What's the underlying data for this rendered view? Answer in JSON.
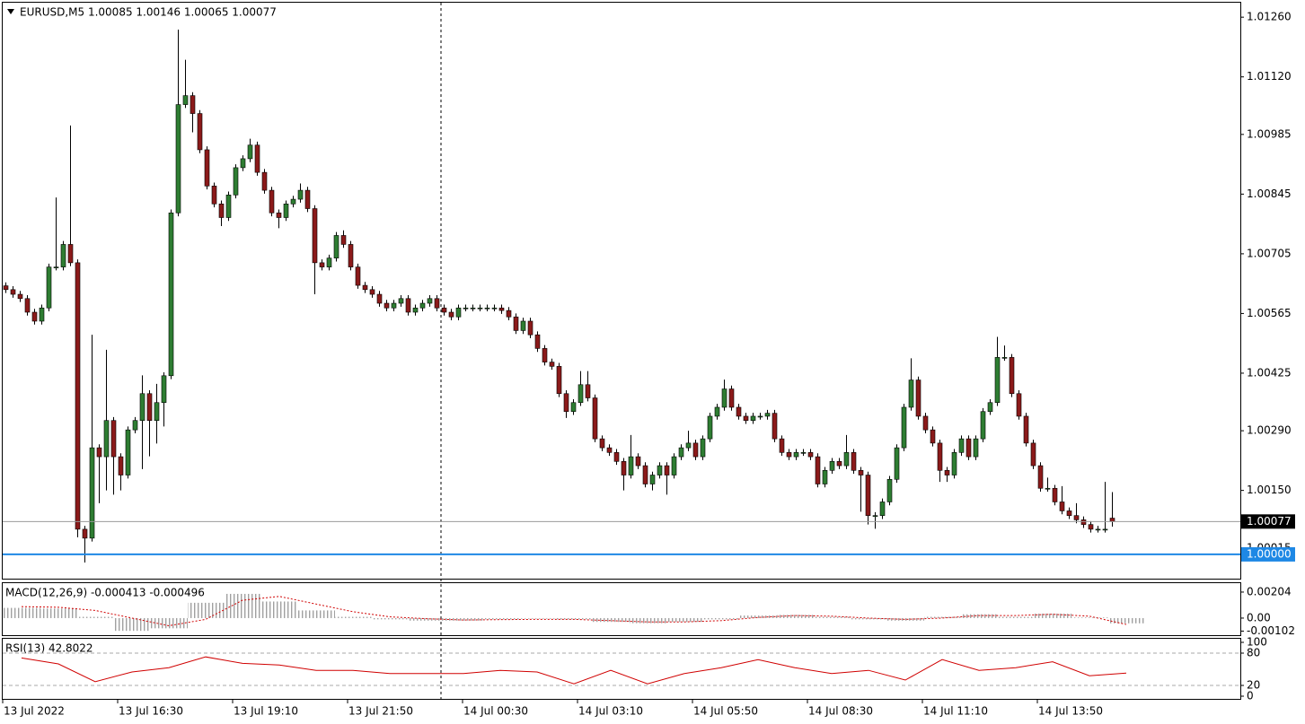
{
  "chart_data": [
    {
      "type": "candlestick",
      "title": "EURUSD,M5  1.00085 1.00146 1.00065 1.00077",
      "bull_color": "#2e7d32",
      "bear_color": "#8b1a1a",
      "wick_color": "#000000",
      "ylim": [
        0.99943,
        1.01294
      ],
      "yticks": [
        {
          "value": 1.0126,
          "label": "1.01260"
        },
        {
          "value": 1.0112,
          "label": "1.01120"
        },
        1.00985,
        1.00845,
        1.00705,
        1.00565,
        1.00425,
        {
          "value": 1.0029,
          "label": "1.00290"
        },
        {
          "value": 1.0015,
          "label": "1.00150"
        },
        1.00015
      ],
      "last_price": 1.00077,
      "level": {
        "value": 1,
        "label": "1.00000"
      },
      "level_color": "#1e88e5",
      "x_labels": [
        "13 Jul 2022",
        "13 Jul 16:30",
        "13 Jul 19:10",
        "13 Jul 21:50",
        "14 Jul 00:30",
        "14 Jul 03:10",
        "14 Jul 05:50",
        "14 Jul 08:30",
        "14 Jul 11:10",
        "14 Jul 13:50"
      ],
      "open": [
        1.0063,
        1.00621,
        1.0061,
        1.006,
        1.00568,
        1.00547,
        1.00578,
        1.00674,
        1.00674,
        1.00727,
        1.00684,
        1.00059,
        1.00038,
        1.0025,
        1.00229,
        1.00314,
        1.00229,
        1.00186,
        1.00292,
        1.00314,
        1.00377,
        1.00314,
        1.00356,
        1.00419,
        1.00801,
        1.01055,
        1.01076,
        1.01034,
        1.00949,
        1.00864,
        1.00822,
        1.0079,
        1.00843,
        1.00907,
        1.00928,
        1.0096,
        1.00896,
        1.00854,
        1.00801,
        1.0079,
        1.00822,
        1.00833,
        1.00854,
        1.00811,
        1.00684,
        1.00674,
        1.00695,
        1.00748,
        1.00727,
        1.00674,
        1.00631,
        1.00621,
        1.0061,
        1.00589,
        1.00578,
        1.00589,
        1.006,
        1.00568,
        1.00578,
        1.00589,
        1.006,
        1.00578,
        1.00568,
        1.00557,
        1.00578,
        1.00578,
        1.00578,
        1.00578,
        1.00578,
        1.00578,
        1.00572,
        1.00557,
        1.00525,
        1.00547,
        1.00515,
        1.00483,
        1.00451,
        1.00441,
        1.00377,
        1.00335,
        1.00356,
        1.00398,
        1.00367,
        1.00271,
        1.0025,
        1.00239,
        1.00218,
        1.00186,
        1.00229,
        1.00208,
        1.00165,
        1.00186,
        1.00208,
        1.00186,
        1.00229,
        1.0025,
        1.00261,
        1.00229,
        1.00271,
        1.00324,
        1.00345,
        1.00388,
        1.00345,
        1.00324,
        1.00314,
        1.00324,
        1.00324,
        1.00331,
        1.00271,
        1.00239,
        1.00229,
        1.00239,
        1.00239,
        1.00229,
        1.00165,
        1.00197,
        1.00218,
        1.00208,
        1.00239,
        1.00197,
        1.00186,
        1.00091,
        1.00091,
        1.00123,
        1.00176,
        1.0025,
        1.00345,
        1.00409,
        1.00324,
        1.00292,
        1.00261,
        1.00197,
        1.00186,
        1.00239,
        1.00271,
        1.00229,
        1.00271,
        1.00335,
        1.00356,
        1.00462,
        1.00462,
        1.00377,
        1.00324,
        1.00261,
        1.00208,
        1.00155,
        1.00155,
        1.00123,
        1.00102,
        1.00091,
        1.00081,
        1.0007,
        1.00059,
        1.00059,
        1.00085
      ],
      "high": [
        1.00638,
        1.00629,
        1.00618,
        1.00608,
        1.00576,
        1.00586,
        1.00682,
        1.00837,
        1.00735,
        1.01006,
        1.00692,
        1.00067,
        1.00515,
        1.00258,
        1.0048,
        1.00322,
        1.00237,
        1.003,
        1.00322,
        1.0042,
        1.00385,
        1.004,
        1.00427,
        1.00809,
        1.01231,
        1.0116,
        1.01084,
        1.01042,
        1.00957,
        1.00872,
        1.0083,
        1.00851,
        1.00915,
        1.00936,
        1.00975,
        1.00968,
        1.00904,
        1.00862,
        1.00809,
        1.0083,
        1.00841,
        1.0087,
        1.00862,
        1.00819,
        1.00692,
        1.00703,
        1.00756,
        1.0076,
        1.00735,
        1.00682,
        1.00639,
        1.00629,
        1.00618,
        1.00597,
        1.00597,
        1.00608,
        1.00608,
        1.00586,
        1.00597,
        1.00608,
        1.00608,
        1.00586,
        1.00576,
        1.00586,
        1.00586,
        1.00586,
        1.00586,
        1.00586,
        1.00586,
        1.00586,
        1.0058,
        1.00565,
        1.00555,
        1.00555,
        1.00523,
        1.00491,
        1.00459,
        1.00449,
        1.00385,
        1.00364,
        1.0043,
        1.0043,
        1.00375,
        1.00279,
        1.00258,
        1.00247,
        1.00226,
        1.0028,
        1.00237,
        1.00216,
        1.00194,
        1.00216,
        1.00216,
        1.00237,
        1.00258,
        1.0029,
        1.00269,
        1.00279,
        1.00332,
        1.00353,
        1.0041,
        1.00396,
        1.00353,
        1.00332,
        1.00332,
        1.00332,
        1.00339,
        1.00339,
        1.00279,
        1.00247,
        1.00247,
        1.00247,
        1.00247,
        1.00237,
        1.00205,
        1.00226,
        1.00226,
        1.0028,
        1.00247,
        1.00205,
        1.00194,
        1.00099,
        1.00131,
        1.00184,
        1.00258,
        1.00353,
        1.0046,
        1.00417,
        1.00332,
        1.003,
        1.00269,
        1.00205,
        1.00247,
        1.00279,
        1.00279,
        1.00279,
        1.00343,
        1.00364,
        1.0051,
        1.0049,
        1.0047,
        1.00385,
        1.00332,
        1.00269,
        1.00216,
        1.0018,
        1.00163,
        1.0016,
        1.0011,
        1.0012,
        1.00089,
        1.00078,
        1.00067,
        1.0017,
        1.00146
      ],
      "low": [
        1.00613,
        1.00602,
        1.00592,
        1.0056,
        1.00539,
        1.00539,
        1.0057,
        1.00666,
        1.00666,
        1.00676,
        1.0004,
        0.99981,
        1.0003,
        1.0012,
        1.0015,
        1.0014,
        1.0015,
        1.00178,
        1.00284,
        1.002,
        1.0023,
        1.0026,
        1.003,
        1.00411,
        1.00793,
        1.01047,
        1.0099,
        1.00941,
        1.00856,
        1.00814,
        1.0077,
        1.00782,
        1.00835,
        1.00899,
        1.0092,
        1.00888,
        1.00846,
        1.00793,
        1.00765,
        1.00782,
        1.00814,
        1.00825,
        1.00803,
        1.0061,
        1.00666,
        1.00666,
        1.00687,
        1.00719,
        1.00666,
        1.00623,
        1.00613,
        1.00602,
        1.00581,
        1.0057,
        1.0057,
        1.00581,
        1.0056,
        1.0056,
        1.0057,
        1.00581,
        1.0057,
        1.0056,
        1.00549,
        1.00549,
        1.0057,
        1.0057,
        1.0057,
        1.0057,
        1.0057,
        1.00564,
        1.00549,
        1.00517,
        1.00517,
        1.00507,
        1.00475,
        1.00443,
        1.00433,
        1.00369,
        1.0032,
        1.00327,
        1.00348,
        1.00359,
        1.00263,
        1.00242,
        1.00231,
        1.0021,
        1.0015,
        1.00178,
        1.002,
        1.00157,
        1.0015,
        1.00178,
        1.0014,
        1.00178,
        1.00221,
        1.00242,
        1.00221,
        1.00221,
        1.00263,
        1.00316,
        1.00337,
        1.00337,
        1.00316,
        1.00306,
        1.00306,
        1.00316,
        1.00316,
        1.00263,
        1.00231,
        1.00221,
        1.00221,
        1.00231,
        1.00221,
        1.00157,
        1.00157,
        1.00189,
        1.002,
        1.002,
        1.00189,
        1.001,
        1.0007,
        1.0006,
        1.00083,
        1.00115,
        1.00168,
        1.00242,
        1.00337,
        1.00316,
        1.00284,
        1.00253,
        1.0017,
        1.0017,
        1.00178,
        1.00231,
        1.00221,
        1.00221,
        1.00263,
        1.00327,
        1.00348,
        1.00454,
        1.00369,
        1.00316,
        1.00253,
        1.002,
        1.00147,
        1.00147,
        1.00115,
        1.00094,
        1.00083,
        1.00073,
        1.00062,
        1.00051,
        1.00051,
        1.00051,
        1.00065
      ],
      "close": [
        1.00621,
        1.0061,
        1.006,
        1.00568,
        1.00547,
        1.00578,
        1.00674,
        1.00674,
        1.00727,
        1.00684,
        1.00059,
        1.00038,
        1.0025,
        1.00229,
        1.00314,
        1.00229,
        1.00186,
        1.00292,
        1.00314,
        1.00377,
        1.00314,
        1.00356,
        1.00419,
        1.00801,
        1.01055,
        1.01076,
        1.01034,
        1.00949,
        1.00864,
        1.00822,
        1.0079,
        1.00843,
        1.00907,
        1.00928,
        1.0096,
        1.00896,
        1.00854,
        1.00801,
        1.0079,
        1.00822,
        1.00833,
        1.00854,
        1.00811,
        1.00684,
        1.00674,
        1.00695,
        1.00748,
        1.00727,
        1.00674,
        1.00631,
        1.00621,
        1.0061,
        1.00589,
        1.00578,
        1.00589,
        1.006,
        1.00568,
        1.00578,
        1.00589,
        1.006,
        1.00578,
        1.00568,
        1.00557,
        1.00578,
        1.00578,
        1.00578,
        1.00578,
        1.00578,
        1.00578,
        1.00572,
        1.00557,
        1.00525,
        1.00547,
        1.00515,
        1.00483,
        1.00451,
        1.00441,
        1.00377,
        1.00335,
        1.00356,
        1.00398,
        1.00367,
        1.00271,
        1.0025,
        1.00239,
        1.00218,
        1.00186,
        1.00229,
        1.00208,
        1.00165,
        1.00186,
        1.00208,
        1.00186,
        1.00229,
        1.0025,
        1.00261,
        1.00229,
        1.00271,
        1.00324,
        1.00345,
        1.00388,
        1.00345,
        1.00324,
        1.00314,
        1.00324,
        1.00324,
        1.00331,
        1.00271,
        1.00239,
        1.00229,
        1.00239,
        1.00239,
        1.00229,
        1.00165,
        1.00197,
        1.00218,
        1.00208,
        1.00239,
        1.00197,
        1.00186,
        1.00091,
        1.00091,
        1.00123,
        1.00176,
        1.0025,
        1.00345,
        1.00409,
        1.00324,
        1.00292,
        1.00261,
        1.00197,
        1.00186,
        1.00239,
        1.00271,
        1.00229,
        1.00271,
        1.00335,
        1.00356,
        1.00462,
        1.00462,
        1.00377,
        1.00324,
        1.00261,
        1.00208,
        1.00155,
        1.00155,
        1.00123,
        1.00102,
        1.00091,
        1.00081,
        1.0007,
        1.00059,
        1.00059,
        1.00059,
        1.00077
      ]
    },
    {
      "type": "macd",
      "title": "MACD(12,26,9) -0.000413 -0.000496",
      "ylim": [
        -0.00134,
        0.00274
      ],
      "yticks": [
        0.00204,
        {
          "value": 0,
          "label": "0.00"
        },
        -0.00102
      ],
      "histogram": {
        "color": "#a0a0a0",
        "values": [
          0.0008,
          0.00075,
          0.0001,
          -0.001,
          -0.0008,
          0.0012,
          0.0019,
          0.0013,
          0.0006,
          0.0001,
          -0.0001,
          -0.0002,
          -0.0002,
          -0.0001,
          -5e-05,
          -0.0001,
          -0.0003,
          -0.0004,
          -0.0003,
          -0.0001,
          0.0002,
          0.00025,
          0.0001,
          -0.0001,
          -0.0002,
          0.0001,
          0.0003,
          0.0001,
          0.00035,
          5e-05,
          -0.00041
        ]
      },
      "signal": {
        "color": "#d00000",
        "values": [
          0.0009,
          0.00085,
          0.0006,
          0,
          -0.0006,
          -0.0001,
          0.0014,
          0.0017,
          0.0011,
          0.0005,
          0.0001,
          -5e-05,
          -0.00015,
          -0.00012,
          -0.0001,
          -0.0001,
          -0.0002,
          -0.0003,
          -0.0003,
          -0.0002,
          5e-05,
          0.0002,
          0.00015,
          0,
          -0.0001,
          0,
          0.0002,
          0.0002,
          0.0003,
          0.00015,
          -0.0005
        ]
      }
    },
    {
      "type": "rsi",
      "title": "RSI(13) 42.8022",
      "color": "#d00000",
      "ylim": [
        0,
        100
      ],
      "yticks": [
        100,
        80,
        20,
        0
      ],
      "levels": [
        80,
        20
      ],
      "values": [
        71,
        60,
        27,
        45,
        53,
        73,
        61,
        58,
        48,
        48,
        42,
        42,
        42,
        48,
        45,
        23,
        48,
        23,
        42,
        53,
        68,
        53,
        42,
        48,
        30,
        68,
        48,
        53,
        64,
        38,
        43
      ]
    }
  ]
}
